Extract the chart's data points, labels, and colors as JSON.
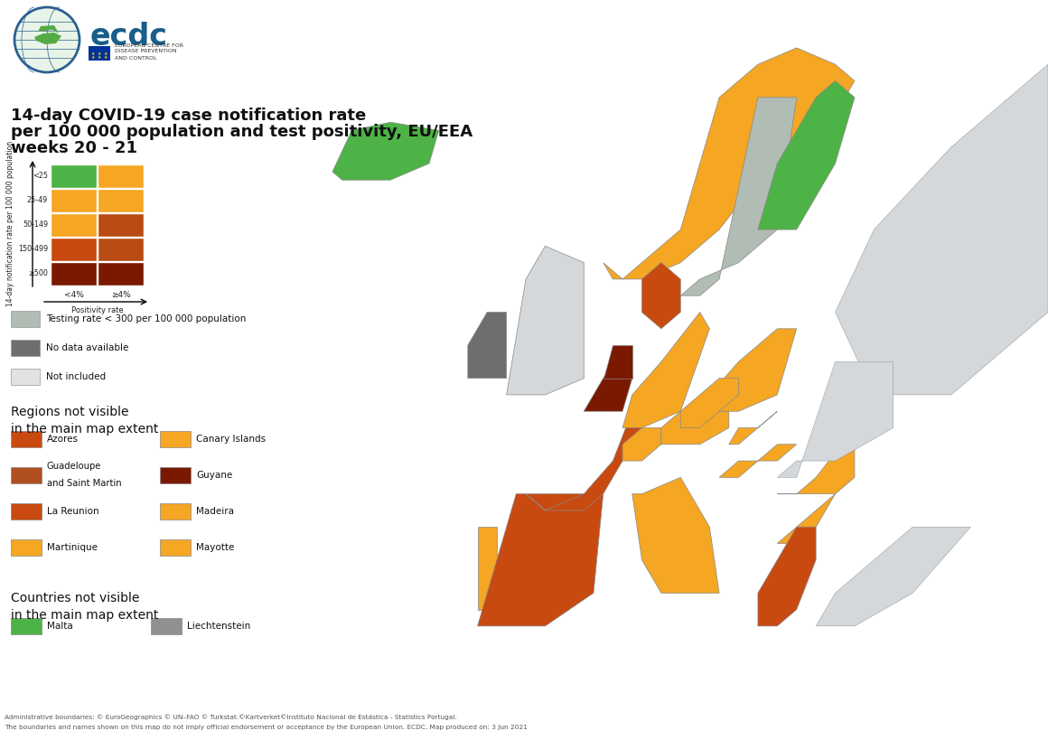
{
  "title_line1": "14-day COVID-19 case notification rate",
  "title_line2": "per 100 000 population and test positivity, EU/EEA",
  "title_line3": "weeks 20 - 21",
  "bg_color": "#ffffff",
  "sea_color": "#c8d5dc",
  "not_included_color": "#d4d8db",
  "matrix_colors": [
    [
      "#4db346",
      "#f5a623"
    ],
    [
      "#f5a623",
      "#f5a623"
    ],
    [
      "#f5a623",
      "#b84c14"
    ],
    [
      "#c84a10",
      "#b84c14"
    ],
    [
      "#7a1800",
      "#7a1800"
    ]
  ],
  "matrix_row_labels": [
    "<25",
    "25-49",
    "50-149",
    "150-499",
    "≥500"
  ],
  "matrix_col_labels": [
    "<4%",
    "≥4%"
  ],
  "special_categories": [
    {
      "color": "#b0bcb4",
      "label": "Testing rate < 300 per 100 000 population"
    },
    {
      "color": "#6e6e6e",
      "label": "No data available"
    },
    {
      "color": "#e0e2e4",
      "label": "Not included"
    }
  ],
  "regions_not_visible": [
    {
      "color": "#c84a10",
      "label": "Azores",
      "col": 0,
      "row": 0
    },
    {
      "color": "#f5a623",
      "label": "Canary Islands",
      "col": 1,
      "row": 0
    },
    {
      "color": "#b05020",
      "label": "Guadeloupe\nand Saint Martin",
      "col": 0,
      "row": 1
    },
    {
      "color": "#7a1800",
      "label": "Guyane",
      "col": 1,
      "row": 1
    },
    {
      "color": "#c84a10",
      "label": "La Reunion",
      "col": 0,
      "row": 2
    },
    {
      "color": "#f5a623",
      "label": "Madeira",
      "col": 1,
      "row": 2
    },
    {
      "color": "#f5a623",
      "label": "Martinique",
      "col": 0,
      "row": 3
    },
    {
      "color": "#f5a623",
      "label": "Mayotte",
      "col": 1,
      "row": 3
    }
  ],
  "countries_not_visible": [
    {
      "color": "#4db346",
      "label": "Malta"
    },
    {
      "color": "#909090",
      "label": "Liechtenstein"
    }
  ],
  "footer1": "Administrative boundaries: © EuroGeographics © UN–FAO © Turkstat.©Kartverket©Instituto Nacional de Estástica - Statistics Portugal.",
  "footer2": "The boundaries and names shown on this map do not imply official endorsement or acceptance by the European Union. ECDC. Map produced on: 3 Jun 2021",
  "country_colors": {
    "ISL": "#4db346",
    "NOR": "#f5a623",
    "SWE": "#b0bcb4",
    "FIN": "#4db346",
    "DNK": "#c84a10",
    "IRL": "#6e6e6e",
    "GBR": "#d4d8db",
    "PRT": "#f5a623",
    "ESP": "#c84a10",
    "FRA": "#c84a10",
    "BEL": "#7a1800",
    "NLD": "#7a1800",
    "LUX": "#c84a10",
    "DEU": "#f5a623",
    "CHE": "#f5a623",
    "AUT": "#f5a623",
    "ITA": "#f5a623",
    "POL": "#f5a623",
    "CZE": "#f5a623",
    "SVK": "#f5a623",
    "HUN": "#f5a623",
    "SVN": "#f5a623",
    "HRV": "#f5a623",
    "ROU": "#f5a623",
    "BGR": "#f5a623",
    "GRC": "#c84a10",
    "CYP": "#f5a623",
    "MLT": "#4db346",
    "LTU": "#7a1800",
    "LVA": "#7a1800",
    "EST": "#7a1800",
    "RUS": "#d4d8db",
    "BLR": "#d4d8db",
    "UKR": "#d4d8db",
    "MDA": "#d4d8db",
    "TUR": "#d4d8db",
    "SRB": "#d4d8db",
    "MKD": "#d4d8db",
    "ALB": "#d4d8db",
    "MNE": "#d4d8db",
    "BIH": "#d4d8db",
    "XKX": "#d4d8db",
    "LIE": "#909090",
    "AND": "#d4d8db",
    "MCO": "#d4d8db",
    "SMR": "#d4d8db",
    "VAT": "#d4d8db"
  }
}
